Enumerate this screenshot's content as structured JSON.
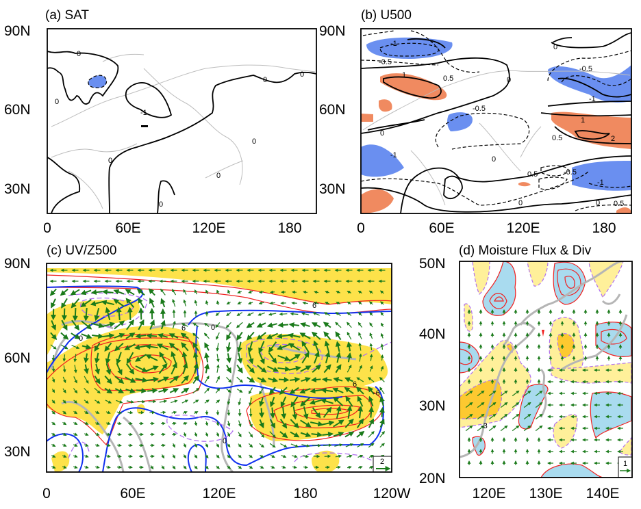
{
  "panels": {
    "a": {
      "title": "(a)  SAT",
      "lat_ticks": [
        "90N",
        "60N",
        "30N"
      ],
      "lon_ticks": [
        "0",
        "60E",
        "120E",
        "180"
      ],
      "contour_labels": [
        "0",
        "0",
        "0",
        "0",
        "0",
        "0",
        "0",
        "0",
        "-1"
      ],
      "colors": {
        "negative": "#6a8ff0"
      }
    },
    "b": {
      "title": "(b) U500",
      "lat_ticks": [
        "90N",
        "60N",
        "30N"
      ],
      "lon_ticks": [
        "0",
        "60E",
        "120E",
        "180"
      ],
      "contour_labels": [
        "-1",
        "-0.5",
        "1",
        "0.5",
        "0",
        "-0.5",
        "0",
        "0",
        "-0.5",
        "-1",
        "1",
        "0.5",
        "2",
        "-1",
        "-0.5",
        "-1",
        "0",
        "0.5",
        "0.5",
        "0",
        "0"
      ],
      "colors": {
        "positive": "#f08a60",
        "negative": "#6a8ff0"
      }
    },
    "c": {
      "title": "(c) UV/Z500",
      "lat_ticks": [
        "90N",
        "60N",
        "30N"
      ],
      "lon_ticks": [
        "0",
        "60E",
        "120E",
        "180",
        "120W"
      ],
      "contour_labels": [
        "6",
        "6",
        "0",
        "0",
        "0",
        "-6",
        "6"
      ],
      "reference_vector": "2",
      "colors": {
        "positive_fill": "#fde24a",
        "positive_line": "#f02020",
        "zero_line": "#1030f0",
        "negative_line": "#b070f0",
        "vectors": "#1a7a1a"
      }
    },
    "d": {
      "title": "(d) Moisture Flux & Div",
      "lat_ticks": [
        "50N",
        "40N",
        "30N",
        "20N"
      ],
      "lon_ticks": [
        "120E",
        "130E",
        "140E"
      ],
      "contour_labels": [
        "-3"
      ],
      "reference_vector": "1",
      "colors": {
        "divergence_fill": "#a9dbef",
        "convergence_fill": "#fff09a",
        "convergence_strong": "#fdc930",
        "vectors": "#1a7a1a"
      }
    }
  }
}
